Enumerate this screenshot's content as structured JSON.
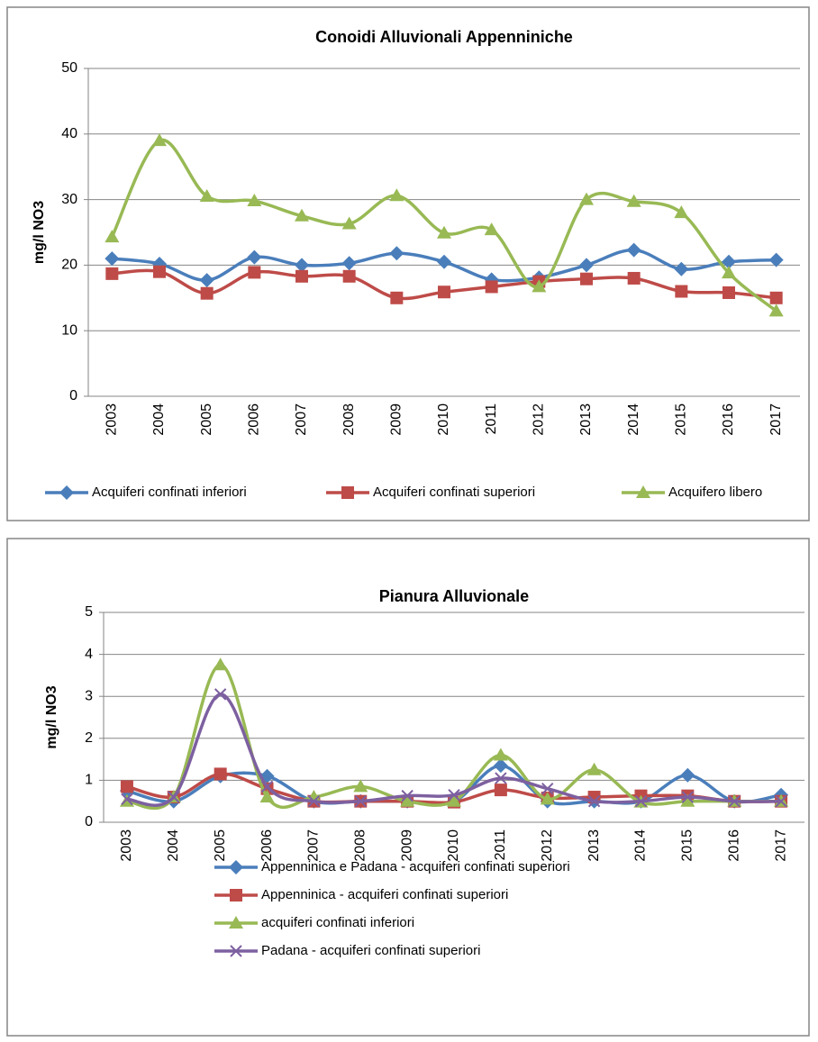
{
  "chart_data": [
    {
      "type": "line",
      "title": "Conoidi Alluvionali Appenniniche",
      "y_label": "mg/l NO3",
      "smooth": true,
      "grid": true,
      "legend": "bottom",
      "categories": [
        "2003",
        "2004",
        "2005",
        "2006",
        "2007",
        "2008",
        "2009",
        "2010",
        "2011",
        "2012",
        "2013",
        "2014",
        "2015",
        "2016",
        "2017"
      ],
      "ylim": [
        0,
        50
      ],
      "yticks": [
        0,
        10,
        20,
        30,
        40,
        50
      ],
      "series": [
        {
          "name": "Acquiferi confinati inferiori",
          "color": "#4a7ebb",
          "marker": "diamond",
          "values": [
            21,
            20.2,
            17.7,
            21.2,
            20,
            20.3,
            21.8,
            20.5,
            17.8,
            18.1,
            20,
            22.3,
            19.4,
            20.5,
            20.8
          ]
        },
        {
          "name": "Acquiferi confinati superiori",
          "color": "#be4b48",
          "marker": "square",
          "values": [
            18.7,
            19,
            15.7,
            18.9,
            18.3,
            18.3,
            15,
            15.9,
            16.7,
            17.5,
            17.9,
            18,
            16,
            15.8,
            15
          ]
        },
        {
          "name": "Acquifero libero",
          "color": "#98b954",
          "marker": "triangle",
          "values": [
            24.3,
            39,
            30.5,
            29.8,
            27.5,
            26.3,
            30.6,
            24.9,
            25.4,
            16.7,
            30,
            29.7,
            28,
            18.8,
            13
          ]
        }
      ]
    },
    {
      "type": "line",
      "title": "Pianura Alluvionale",
      "y_label": "mg/l NO3",
      "smooth": true,
      "grid": true,
      "legend": "bottom",
      "categories": [
        "2003",
        "2004",
        "2005",
        "2006",
        "2007",
        "2008",
        "2009",
        "2010",
        "2011",
        "2012",
        "2013",
        "2014",
        "2015",
        "2016",
        "2017"
      ],
      "ylim": [
        0,
        5
      ],
      "yticks": [
        0,
        1,
        2,
        3,
        4,
        5
      ],
      "series": [
        {
          "name": "Appenninica e Padana - acquiferi confinati superiori",
          "color": "#4a7ebb",
          "marker": "diamond",
          "values": [
            0.75,
            0.5,
            1.1,
            1.1,
            0.5,
            0.5,
            0.5,
            0.5,
            1.35,
            0.5,
            0.5,
            0.5,
            1.12,
            0.5,
            0.65
          ]
        },
        {
          "name": "Appenninica - acquiferi confinati superiori",
          "color": "#be4b48",
          "marker": "square",
          "values": [
            0.85,
            0.6,
            1.15,
            0.8,
            0.5,
            0.5,
            0.5,
            0.48,
            0.77,
            0.58,
            0.6,
            0.63,
            0.63,
            0.5,
            0.5
          ]
        },
        {
          "name": "acquiferi confinati inferiori",
          "color": "#98b954",
          "marker": "triangle",
          "values": [
            0.5,
            0.6,
            3.75,
            0.6,
            0.6,
            0.85,
            0.5,
            0.5,
            1.6,
            0.55,
            1.25,
            0.48,
            0.5,
            0.5,
            0.5
          ]
        },
        {
          "name": "Padana - acquiferi confinati superiori",
          "color": "#7d60a0",
          "marker": "x",
          "values": [
            0.55,
            0.6,
            3.05,
            0.85,
            0.5,
            0.5,
            0.63,
            0.65,
            1.05,
            0.8,
            0.5,
            0.5,
            0.6,
            0.5,
            0.5
          ]
        }
      ]
    }
  ]
}
